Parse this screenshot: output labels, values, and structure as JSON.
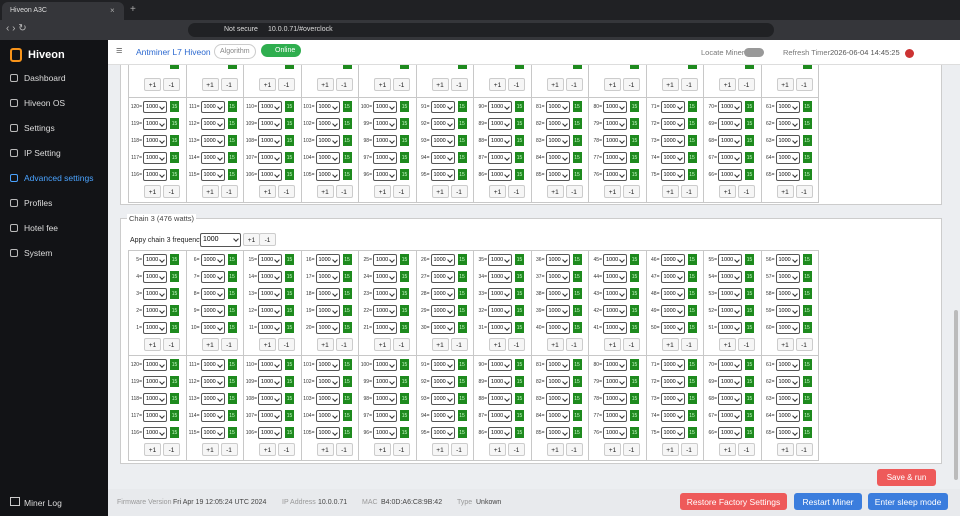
{
  "browser": {
    "tab_title": "Hiveon A3C",
    "security": "Not secure",
    "url": "10.0.0.71/#overclock"
  },
  "sidebar": {
    "brand": "Hiveon",
    "menu": [
      "Dashboard",
      "Hiveon OS",
      "Settings",
      "IP Setting",
      "Advanced settings",
      "Profiles",
      "Hotel fee",
      "System"
    ],
    "log": "Miner Log"
  },
  "header": {
    "title": "Antminer L7 Hiveon",
    "algorithm": "Algorithm",
    "status": "Online",
    "locate": "Locate Miner",
    "refresh_label": "Refresh Timer",
    "refresh_time": "2026-06-04 14:45:25"
  },
  "buttons": {
    "inc": "+1",
    "dec": "-1"
  },
  "chain3": {
    "title": "Chain 3 (476 watts)",
    "apply_label": "Appy chain 3 frequency:",
    "apply_value": "1000"
  },
  "blocks": [
    {
      "rows": [
        [
          [
            "120=",
            "1000",
            "15"
          ],
          [
            "111=",
            "1000",
            "15"
          ],
          [
            "110=",
            "1000",
            "15"
          ],
          [
            "101=",
            "1000",
            "15"
          ],
          [
            "100=",
            "1000",
            "15"
          ],
          [
            "91=",
            "1000",
            "15"
          ],
          [
            "90=",
            "1000",
            "15"
          ],
          [
            "81=",
            "1000",
            "15"
          ],
          [
            "80=",
            "1000",
            "15"
          ],
          [
            "71=",
            "1000",
            "15"
          ],
          [
            "70=",
            "1000",
            "15"
          ],
          [
            "61=",
            "1000",
            "15"
          ]
        ],
        [
          [
            "119=",
            "1000",
            "15"
          ],
          [
            "112=",
            "1000",
            "15"
          ],
          [
            "109=",
            "1000",
            "15"
          ],
          [
            "102=",
            "1000",
            "15"
          ],
          [
            "99=",
            "1000",
            "15"
          ],
          [
            "92=",
            "1000",
            "15"
          ],
          [
            "89=",
            "1000",
            "15"
          ],
          [
            "82=",
            "1000",
            "15"
          ],
          [
            "79=",
            "1000",
            "15"
          ],
          [
            "72=",
            "1000",
            "15"
          ],
          [
            "69=",
            "1000",
            "15"
          ],
          [
            "62=",
            "1000",
            "15"
          ]
        ],
        [
          [
            "118=",
            "1000",
            "15"
          ],
          [
            "113=",
            "1000",
            "15"
          ],
          [
            "108=",
            "1000",
            "15"
          ],
          [
            "103=",
            "1000",
            "15"
          ],
          [
            "98=",
            "1000",
            "15"
          ],
          [
            "93=",
            "1000",
            "15"
          ],
          [
            "88=",
            "1000",
            "15"
          ],
          [
            "83=",
            "1000",
            "15"
          ],
          [
            "78=",
            "1000",
            "15"
          ],
          [
            "73=",
            "1000",
            "15"
          ],
          [
            "68=",
            "1000",
            "15"
          ],
          [
            "63=",
            "1000",
            "15"
          ]
        ],
        [
          [
            "117=",
            "1000",
            "15"
          ],
          [
            "114=",
            "1000",
            "15"
          ],
          [
            "107=",
            "1000",
            "15"
          ],
          [
            "104=",
            "1000",
            "15"
          ],
          [
            "97=",
            "1000",
            "15"
          ],
          [
            "94=",
            "1000",
            "15"
          ],
          [
            "87=",
            "1000",
            "15"
          ],
          [
            "84=",
            "1000",
            "15"
          ],
          [
            "77=",
            "1000",
            "15"
          ],
          [
            "74=",
            "1000",
            "15"
          ],
          [
            "67=",
            "1000",
            "15"
          ],
          [
            "64=",
            "1000",
            "15"
          ]
        ],
        [
          [
            "116=",
            "1000",
            "15"
          ],
          [
            "115=",
            "1000",
            "15"
          ],
          [
            "106=",
            "1000",
            "15"
          ],
          [
            "105=",
            "1000",
            "15"
          ],
          [
            "96=",
            "1000",
            "15"
          ],
          [
            "95=",
            "1000",
            "15"
          ],
          [
            "86=",
            "1000",
            "15"
          ],
          [
            "85=",
            "1000",
            "15"
          ],
          [
            "76=",
            "1000",
            "15"
          ],
          [
            "75=",
            "1000",
            "15"
          ],
          [
            "66=",
            "1000",
            "15"
          ],
          [
            "65=",
            "1000",
            "15"
          ]
        ]
      ]
    },
    {
      "rows": [
        [
          [
            "5=",
            "1000",
            "15"
          ],
          [
            "6=",
            "1000",
            "15"
          ],
          [
            "15=",
            "1000",
            "15"
          ],
          [
            "16=",
            "1000",
            "15"
          ],
          [
            "25=",
            "1000",
            "15"
          ],
          [
            "26=",
            "1000",
            "15"
          ],
          [
            "35=",
            "1000",
            "15"
          ],
          [
            "36=",
            "1000",
            "15"
          ],
          [
            "45=",
            "1000",
            "15"
          ],
          [
            "46=",
            "1000",
            "15"
          ],
          [
            "55=",
            "1000",
            "15"
          ],
          [
            "56=",
            "1000",
            "15"
          ]
        ],
        [
          [
            "4=",
            "1000",
            "15"
          ],
          [
            "7=",
            "1000",
            "15"
          ],
          [
            "14=",
            "1000",
            "15"
          ],
          [
            "17=",
            "1000",
            "15"
          ],
          [
            "24=",
            "1000",
            "15"
          ],
          [
            "27=",
            "1000",
            "15"
          ],
          [
            "34=",
            "1000",
            "15"
          ],
          [
            "37=",
            "1000",
            "15"
          ],
          [
            "44=",
            "1000",
            "15"
          ],
          [
            "47=",
            "1000",
            "15"
          ],
          [
            "54=",
            "1000",
            "15"
          ],
          [
            "57=",
            "1000",
            "15"
          ]
        ],
        [
          [
            "3=",
            "1000",
            "15"
          ],
          [
            "8=",
            "1000",
            "15"
          ],
          [
            "13=",
            "1000",
            "15"
          ],
          [
            "18=",
            "1000",
            "15"
          ],
          [
            "23=",
            "1000",
            "15"
          ],
          [
            "28=",
            "1000",
            "15"
          ],
          [
            "33=",
            "1000",
            "15"
          ],
          [
            "38=",
            "1000",
            "15"
          ],
          [
            "43=",
            "1000",
            "15"
          ],
          [
            "48=",
            "1000",
            "15"
          ],
          [
            "53=",
            "1000",
            "15"
          ],
          [
            "58=",
            "1000",
            "15"
          ]
        ],
        [
          [
            "2=",
            "1000",
            "15"
          ],
          [
            "9=",
            "1000",
            "15"
          ],
          [
            "12=",
            "1000",
            "15"
          ],
          [
            "19=",
            "1000",
            "15"
          ],
          [
            "22=",
            "1000",
            "15"
          ],
          [
            "29=",
            "1000",
            "15"
          ],
          [
            "32=",
            "1000",
            "15"
          ],
          [
            "39=",
            "1000",
            "15"
          ],
          [
            "42=",
            "1000",
            "15"
          ],
          [
            "49=",
            "1000",
            "15"
          ],
          [
            "52=",
            "1000",
            "15"
          ],
          [
            "59=",
            "1000",
            "15"
          ]
        ],
        [
          [
            "1=",
            "1000",
            "15"
          ],
          [
            "10=",
            "1000",
            "15"
          ],
          [
            "11=",
            "1000",
            "15"
          ],
          [
            "20=",
            "1000",
            "15"
          ],
          [
            "21=",
            "1000",
            "15"
          ],
          [
            "30=",
            "1000",
            "15"
          ],
          [
            "31=",
            "1000",
            "15"
          ],
          [
            "40=",
            "1000",
            "15"
          ],
          [
            "41=",
            "1000",
            "15"
          ],
          [
            "50=",
            "1000",
            "15"
          ],
          [
            "51=",
            "1000",
            "15"
          ],
          [
            "60=",
            "1000",
            "15"
          ]
        ]
      ]
    },
    {
      "rows": [
        [
          [
            "120=",
            "1000",
            "15"
          ],
          [
            "111=",
            "1000",
            "15"
          ],
          [
            "110=",
            "1000",
            "15"
          ],
          [
            "101=",
            "1000",
            "15"
          ],
          [
            "100=",
            "1000",
            "15"
          ],
          [
            "91=",
            "1000",
            "15"
          ],
          [
            "90=",
            "1000",
            "15"
          ],
          [
            "81=",
            "1000",
            "15"
          ],
          [
            "80=",
            "1000",
            "15"
          ],
          [
            "71=",
            "1000",
            "15"
          ],
          [
            "70=",
            "1000",
            "15"
          ],
          [
            "61=",
            "1000",
            "15"
          ]
        ],
        [
          [
            "119=",
            "1000",
            "15"
          ],
          [
            "112=",
            "1000",
            "15"
          ],
          [
            "109=",
            "1000",
            "15"
          ],
          [
            "102=",
            "1000",
            "15"
          ],
          [
            "99=",
            "1000",
            "15"
          ],
          [
            "92=",
            "1000",
            "15"
          ],
          [
            "89=",
            "1000",
            "15"
          ],
          [
            "82=",
            "1000",
            "15"
          ],
          [
            "79=",
            "1000",
            "15"
          ],
          [
            "72=",
            "1000",
            "15"
          ],
          [
            "69=",
            "1000",
            "15"
          ],
          [
            "62=",
            "1000",
            "15"
          ]
        ],
        [
          [
            "118=",
            "1000",
            "15"
          ],
          [
            "113=",
            "1000",
            "15"
          ],
          [
            "108=",
            "1000",
            "15"
          ],
          [
            "103=",
            "1000",
            "15"
          ],
          [
            "98=",
            "1000",
            "15"
          ],
          [
            "93=",
            "1000",
            "15"
          ],
          [
            "88=",
            "1000",
            "15"
          ],
          [
            "83=",
            "1000",
            "15"
          ],
          [
            "78=",
            "1000",
            "15"
          ],
          [
            "73=",
            "1000",
            "15"
          ],
          [
            "68=",
            "1000",
            "15"
          ],
          [
            "63=",
            "1000",
            "15"
          ]
        ],
        [
          [
            "117=",
            "1000",
            "15"
          ],
          [
            "114=",
            "1000",
            "15"
          ],
          [
            "107=",
            "1000",
            "15"
          ],
          [
            "104=",
            "1000",
            "15"
          ],
          [
            "97=",
            "1000",
            "15"
          ],
          [
            "94=",
            "1000",
            "15"
          ],
          [
            "87=",
            "1000",
            "15"
          ],
          [
            "84=",
            "1000",
            "15"
          ],
          [
            "77=",
            "1000",
            "15"
          ],
          [
            "74=",
            "1000",
            "15"
          ],
          [
            "67=",
            "1000",
            "15"
          ],
          [
            "64=",
            "1000",
            "15"
          ]
        ],
        [
          [
            "116=",
            "1000",
            "15"
          ],
          [
            "115=",
            "1000",
            "15"
          ],
          [
            "106=",
            "1000",
            "15"
          ],
          [
            "105=",
            "1000",
            "15"
          ],
          [
            "96=",
            "1000",
            "15"
          ],
          [
            "95=",
            "1000",
            "15"
          ],
          [
            "86=",
            "1000",
            "15"
          ],
          [
            "85=",
            "1000",
            "15"
          ],
          [
            "76=",
            "1000",
            "15"
          ],
          [
            "75=",
            "1000",
            "15"
          ],
          [
            "66=",
            "1000",
            "15"
          ],
          [
            "65=",
            "1000",
            "15"
          ]
        ]
      ]
    }
  ],
  "save": "Save & run",
  "footer": {
    "fw_label": "Firmware Version",
    "fw_value": "Fri Apr 19 12:05:24 UTC 2024",
    "ip_label": "IP Address",
    "ip_value": "10.0.0.71",
    "mac_label": "MAC",
    "mac_value": "B4:0D:A6:C8:9B:42",
    "type_label": "Type",
    "type_value": "Unkown",
    "restore": "Restore Factory Settings",
    "restart": "Restart Miner",
    "sleep": "Enter sleep mode"
  }
}
